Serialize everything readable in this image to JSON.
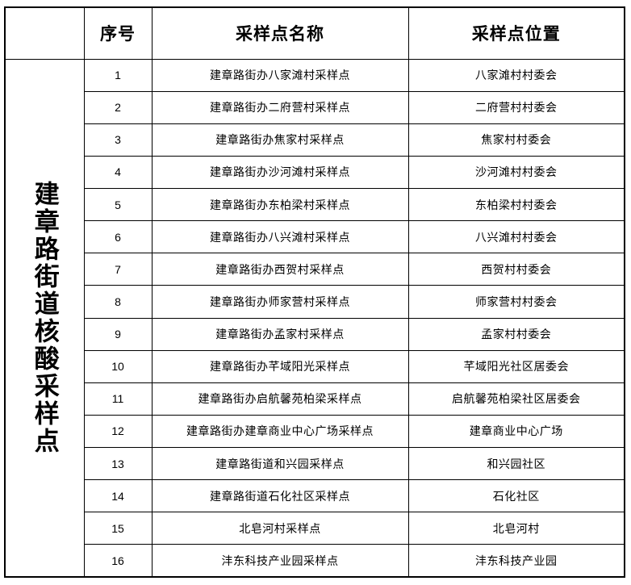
{
  "table": {
    "row_header_title": "建章路街道核酸采样点",
    "columns": {
      "seq": "序号",
      "name": "采样点名称",
      "location": "采样点位置"
    },
    "rows": [
      {
        "seq": "1",
        "name": "建章路街办八家滩村采样点",
        "location": "八家滩村村委会"
      },
      {
        "seq": "2",
        "name": "建章路街办二府营村采样点",
        "location": "二府营村村委会"
      },
      {
        "seq": "3",
        "name": "建章路街办焦家村采样点",
        "location": "焦家村村委会"
      },
      {
        "seq": "4",
        "name": "建章路街办沙河滩村采样点",
        "location": "沙河滩村村委会"
      },
      {
        "seq": "5",
        "name": "建章路街办东柏梁村采样点",
        "location": "东柏梁村村委会"
      },
      {
        "seq": "6",
        "name": "建章路街办八兴滩村采样点",
        "location": "八兴滩村村委会"
      },
      {
        "seq": "7",
        "name": "建章路街办西贺村采样点",
        "location": "西贺村村委会"
      },
      {
        "seq": "8",
        "name": "建章路街办师家营村采样点",
        "location": "师家营村村委会"
      },
      {
        "seq": "9",
        "name": "建章路街办孟家村采样点",
        "location": "孟家村村委会"
      },
      {
        "seq": "10",
        "name": "建章路街办芊域阳光采样点",
        "location": "芊域阳光社区居委会"
      },
      {
        "seq": "11",
        "name": "建章路街办启航馨苑柏梁采样点",
        "location": "启航馨苑柏梁社区居委会"
      },
      {
        "seq": "12",
        "name": "建章路街办建章商业中心广场采样点",
        "location": "建章商业中心广场"
      },
      {
        "seq": "13",
        "name": "建章路街道和兴园采样点",
        "location": "和兴园社区"
      },
      {
        "seq": "14",
        "name": "建章路街道石化社区采样点",
        "location": "石化社区"
      },
      {
        "seq": "15",
        "name": "北皂河村采样点",
        "location": "北皂河村"
      },
      {
        "seq": "16",
        "name": "沣东科技产业园采样点",
        "location": "沣东科技产业园"
      }
    ],
    "colors": {
      "border": "#000000",
      "text": "#000000",
      "background": "#ffffff"
    }
  }
}
